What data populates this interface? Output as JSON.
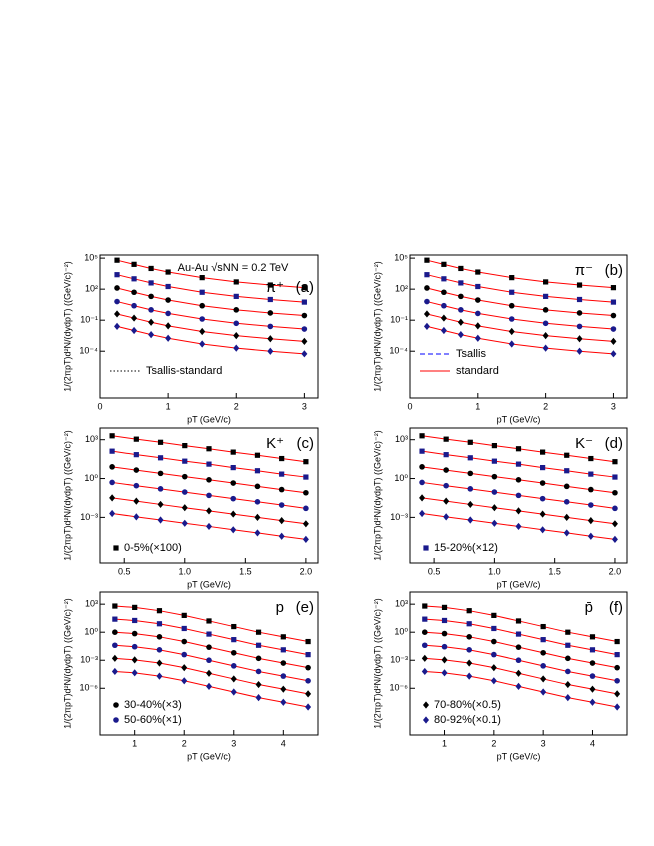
{
  "chart_data": [
    {
      "type": "scatter",
      "log_y": true,
      "y_label": "1/(2πpT)d²N/(dydpT) ((GeV/c)⁻²)",
      "x_label": "pT (GeV/c)",
      "annotations": [
        "Au-Au √sNN = 0.2 TeV",
        "π⁺",
        "(a)"
      ],
      "fit_lines": [
        {
          "name": "Tsallis-standard",
          "color": "#000000",
          "style": "dotted"
        }
      ],
      "xlim": [
        0,
        3.2
      ],
      "xticks": [
        0,
        1,
        2,
        3
      ],
      "ylim": [
        3e-09,
        200000.0
      ],
      "yticks": [
        {
          "value": 100000,
          "label": "10⁵"
        },
        {
          "value": 100,
          "label": "10²"
        },
        {
          "value": 0.1,
          "label": "10⁻¹"
        },
        {
          "value": 0.0001,
          "label": "10⁻⁴"
        }
      ],
      "x": [
        0.25,
        0.5,
        0.75,
        1.0,
        1.5,
        2.0,
        2.5,
        3.0
      ],
      "series": [
        {
          "color": "#000000",
          "marker": "square",
          "values": [
            63000,
            25000,
            10000,
            4500,
            1300,
            500,
            250,
            140
          ]
        },
        {
          "color": "#1a1a8c",
          "marker": "square",
          "values": [
            2500,
            1000,
            400,
            180,
            50,
            20,
            10,
            5.6
          ]
        },
        {
          "color": "#000000",
          "marker": "circle",
          "values": [
            130,
            50,
            20,
            8.9,
            2.5,
            1.0,
            0.5,
            0.28
          ]
        },
        {
          "color": "#1a1a8c",
          "marker": "circle",
          "values": [
            6.3,
            2.5,
            1.0,
            0.45,
            0.13,
            0.05,
            0.025,
            0.014
          ]
        },
        {
          "color": "#000000",
          "marker": "diamond",
          "values": [
            0.4,
            0.16,
            0.063,
            0.028,
            0.008,
            0.0032,
            0.0016,
            0.0009
          ]
        },
        {
          "color": "#1a1a8c",
          "marker": "diamond",
          "values": [
            0.025,
            0.01,
            0.004,
            0.0018,
            0.0005,
            0.0002,
            0.0001,
            5.6e-05
          ]
        }
      ]
    },
    {
      "type": "scatter",
      "log_y": true,
      "y_label": "1/(2πpT)d²N/(dydpT) ((GeV/c)⁻²)",
      "x_label": "pT (GeV/c)",
      "annotations": [
        "π⁻",
        "(b)"
      ],
      "fit_lines": [
        {
          "name": "Tsallis",
          "color": "#0000ff",
          "style": "dashed"
        },
        {
          "name": "standard",
          "color": "#ff0000",
          "style": "solid"
        }
      ],
      "xlim": [
        0,
        3.2
      ],
      "xticks": [
        0,
        1,
        2,
        3
      ],
      "ylim": [
        3e-09,
        200000.0
      ],
      "yticks": [
        {
          "value": 100000,
          "label": "10⁵"
        },
        {
          "value": 100,
          "label": "10²"
        },
        {
          "value": 0.1,
          "label": "10⁻¹"
        },
        {
          "value": 0.0001,
          "label": "10⁻⁴"
        }
      ],
      "x": [
        0.25,
        0.5,
        0.75,
        1.0,
        1.5,
        2.0,
        2.5,
        3.0
      ],
      "series": [
        {
          "color": "#000000",
          "marker": "square",
          "values": [
            63000,
            25000,
            10000,
            4500,
            1300,
            500,
            250,
            140
          ]
        },
        {
          "color": "#1a1a8c",
          "marker": "square",
          "values": [
            2500,
            1000,
            400,
            180,
            50,
            20,
            10,
            5.6
          ]
        },
        {
          "color": "#000000",
          "marker": "circle",
          "values": [
            130,
            50,
            20,
            8.9,
            2.5,
            1.0,
            0.5,
            0.28
          ]
        },
        {
          "color": "#1a1a8c",
          "marker": "circle",
          "values": [
            6.3,
            2.5,
            1.0,
            0.45,
            0.13,
            0.05,
            0.025,
            0.014
          ]
        },
        {
          "color": "#000000",
          "marker": "diamond",
          "values": [
            0.4,
            0.16,
            0.063,
            0.028,
            0.008,
            0.0032,
            0.0016,
            0.0009
          ]
        },
        {
          "color": "#1a1a8c",
          "marker": "diamond",
          "values": [
            0.025,
            0.01,
            0.004,
            0.0018,
            0.0005,
            0.0002,
            0.0001,
            5.6e-05
          ]
        }
      ]
    },
    {
      "type": "scatter",
      "log_y": true,
      "y_label": "1/(2πpT)d²N/(dydpT) ((GeV/c)⁻²)",
      "x_label": "pT (GeV/c)",
      "annotations": [
        "K⁺",
        "(c)"
      ],
      "xlim": [
        0.3,
        2.1
      ],
      "xticks": [
        0.5,
        {
          "value": 1,
          "label": "1.0"
        },
        1.5,
        {
          "value": 2,
          "label": "2.0"
        }
      ],
      "ylim": [
        3e-07,
        8000
      ],
      "yticks": [
        {
          "value": 1000,
          "label": "10³"
        },
        {
          "value": 1,
          "label": "10⁰"
        },
        {
          "value": 0.001,
          "label": "10⁻³"
        }
      ],
      "x": [
        0.4,
        0.6,
        0.8,
        1.0,
        1.2,
        1.4,
        1.6,
        1.8,
        2.0
      ],
      "series": [
        {
          "name": "0-5%(×100)",
          "color": "#000000",
          "marker": "square",
          "values": [
            2000,
            1100,
            630,
            350,
            200,
            110,
            63,
            35,
            20
          ]
        },
        {
          "color": "#1a1a8c",
          "marker": "square",
          "values": [
            130,
            70,
            40,
            22,
            13,
            7,
            4,
            2.2,
            1.3
          ]
        },
        {
          "color": "#000000",
          "marker": "circle",
          "values": [
            8,
            4.5,
            2.5,
            1.4,
            0.8,
            0.45,
            0.25,
            0.14,
            0.08
          ]
        },
        {
          "color": "#1a1a8c",
          "marker": "circle",
          "values": [
            0.5,
            0.28,
            0.16,
            0.09,
            0.05,
            0.028,
            0.016,
            0.009,
            0.005
          ]
        },
        {
          "color": "#000000",
          "marker": "diamond",
          "values": [
            0.032,
            0.018,
            0.01,
            0.0056,
            0.0032,
            0.0018,
            0.001,
            0.00056,
            0.00032
          ]
        },
        {
          "color": "#1a1a8c",
          "marker": "diamond",
          "values": [
            0.002,
            0.0011,
            0.00063,
            0.00035,
            0.0002,
            0.00011,
            6.3e-05,
            3.5e-05,
            2e-05
          ]
        }
      ]
    },
    {
      "type": "scatter",
      "log_y": true,
      "y_label": "1/(2πpT)d²N/(dydpT) ((GeV/c)⁻²)",
      "x_label": "pT (GeV/c)",
      "annotations": [
        "K⁻",
        "(d)"
      ],
      "xlim": [
        0.3,
        2.1
      ],
      "xticks": [
        0.5,
        {
          "value": 1,
          "label": "1.0"
        },
        1.5,
        {
          "value": 2,
          "label": "2.0"
        }
      ],
      "ylim": [
        3e-07,
        8000
      ],
      "yticks": [
        {
          "value": 1000,
          "label": "10³"
        },
        {
          "value": 1,
          "label": "10⁰"
        },
        {
          "value": 0.001,
          "label": "10⁻³"
        }
      ],
      "x": [
        0.4,
        0.6,
        0.8,
        1.0,
        1.2,
        1.4,
        1.6,
        1.8,
        2.0
      ],
      "series": [
        {
          "color": "#000000",
          "marker": "square",
          "values": [
            2000,
            1100,
            630,
            350,
            200,
            110,
            63,
            35,
            20
          ]
        },
        {
          "name": "15-20%(×12)",
          "color": "#1a1a8c",
          "marker": "square",
          "values": [
            130,
            70,
            40,
            22,
            13,
            7,
            4,
            2.2,
            1.3
          ]
        },
        {
          "color": "#000000",
          "marker": "circle",
          "values": [
            8,
            4.5,
            2.5,
            1.4,
            0.8,
            0.45,
            0.25,
            0.14,
            0.08
          ]
        },
        {
          "color": "#1a1a8c",
          "marker": "circle",
          "values": [
            0.5,
            0.28,
            0.16,
            0.09,
            0.05,
            0.028,
            0.016,
            0.009,
            0.005
          ]
        },
        {
          "color": "#000000",
          "marker": "diamond",
          "values": [
            0.032,
            0.018,
            0.01,
            0.0056,
            0.0032,
            0.0018,
            0.001,
            0.00056,
            0.00032
          ]
        },
        {
          "color": "#1a1a8c",
          "marker": "diamond",
          "values": [
            0.002,
            0.0011,
            0.00063,
            0.00035,
            0.0002,
            0.00011,
            6.3e-05,
            3.5e-05,
            2e-05
          ]
        }
      ]
    },
    {
      "type": "scatter",
      "log_y": true,
      "y_label": "1/(2πpT)d²N/(dydpT) ((GeV/c)⁻²)",
      "x_label": "pT (GeV/c)",
      "annotations": [
        "p",
        "(e)"
      ],
      "xlim": [
        0.3,
        4.7
      ],
      "xticks": [
        1,
        2,
        3,
        4
      ],
      "ylim": [
        1e-11,
        20000
      ],
      "yticks": [
        {
          "value": 1000,
          "label": "10³"
        },
        {
          "value": 1,
          "label": "10⁰"
        },
        {
          "value": 0.001,
          "label": "10⁻³"
        },
        {
          "value": 1e-06,
          "label": "10⁻⁶"
        }
      ],
      "x": [
        0.6,
        1.0,
        1.5,
        2.0,
        2.5,
        3.0,
        3.5,
        4.0,
        4.5
      ],
      "series": [
        {
          "color": "#000000",
          "marker": "square",
          "values": [
            630,
            450,
            200,
            63,
            16,
            4,
            1,
            0.32,
            0.1
          ]
        },
        {
          "color": "#1a1a8c",
          "marker": "square",
          "values": [
            25,
            18,
            8,
            2.5,
            0.63,
            0.16,
            0.04,
            0.013,
            0.004
          ]
        },
        {
          "name": "30-40%(×3)",
          "color": "#000000",
          "marker": "circle",
          "values": [
            1,
            0.71,
            0.32,
            0.1,
            0.025,
            0.0063,
            0.0016,
            0.0005,
            0.00016
          ]
        },
        {
          "name": "50-60%(×1)",
          "color": "#1a1a8c",
          "marker": "circle",
          "values": [
            0.04,
            0.028,
            0.013,
            0.004,
            0.001,
            0.00025,
            6.3e-05,
            2e-05,
            6.3e-06
          ]
        },
        {
          "color": "#000000",
          "marker": "diamond",
          "values": [
            0.0016,
            0.0011,
            0.0005,
            0.00016,
            4e-05,
            1e-05,
            2.5e-06,
            8e-07,
            2.5e-07
          ]
        },
        {
          "color": "#1a1a8c",
          "marker": "diamond",
          "values": [
            6.3e-05,
            4.5e-05,
            2e-05,
            6.3e-06,
            1.6e-06,
            4e-07,
            1e-07,
            3.2e-08,
            1e-08
          ]
        }
      ]
    },
    {
      "type": "scatter",
      "log_y": true,
      "y_label": "1/(2πpT)d²N/(dydpT) ((GeV/c)⁻²)",
      "x_label": "pT (GeV/c)",
      "annotations": [
        "p̄",
        "(f)"
      ],
      "xlim": [
        0.3,
        4.7
      ],
      "xticks": [
        1,
        2,
        3,
        4
      ],
      "ylim": [
        1e-11,
        20000
      ],
      "yticks": [
        {
          "value": 1000,
          "label": "10³"
        },
        {
          "value": 1,
          "label": "10⁰"
        },
        {
          "value": 0.001,
          "label": "10⁻³"
        },
        {
          "value": 1e-06,
          "label": "10⁻⁶"
        }
      ],
      "x": [
        0.6,
        1.0,
        1.5,
        2.0,
        2.5,
        3.0,
        3.5,
        4.0,
        4.5
      ],
      "series": [
        {
          "color": "#000000",
          "marker": "square",
          "values": [
            630,
            450,
            200,
            63,
            16,
            4,
            1,
            0.32,
            0.1
          ]
        },
        {
          "color": "#1a1a8c",
          "marker": "square",
          "values": [
            25,
            18,
            8,
            2.5,
            0.63,
            0.16,
            0.04,
            0.013,
            0.004
          ]
        },
        {
          "color": "#000000",
          "marker": "circle",
          "values": [
            1,
            0.71,
            0.32,
            0.1,
            0.025,
            0.0063,
            0.0016,
            0.0005,
            0.00016
          ]
        },
        {
          "color": "#1a1a8c",
          "marker": "circle",
          "values": [
            0.04,
            0.028,
            0.013,
            0.004,
            0.001,
            0.00025,
            6.3e-05,
            2e-05,
            6.3e-06
          ]
        },
        {
          "name": "70-80%(×0.5)",
          "color": "#000000",
          "marker": "diamond",
          "values": [
            0.0016,
            0.0011,
            0.0005,
            0.00016,
            4e-05,
            1e-05,
            2.5e-06,
            8e-07,
            2.5e-07
          ]
        },
        {
          "name": "80-92%(×0.1)",
          "color": "#1a1a8c",
          "marker": "diamond",
          "values": [
            6.3e-05,
            4.5e-05,
            2e-05,
            6.3e-06,
            1.6e-06,
            4e-07,
            1e-07,
            3.2e-08,
            1e-08
          ]
        }
      ]
    }
  ]
}
